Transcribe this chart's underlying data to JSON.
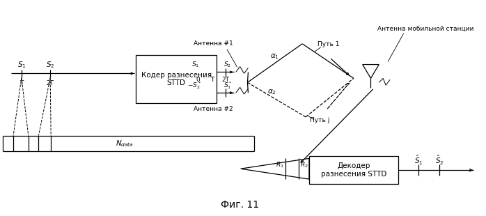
{
  "bg_color": "#ffffff",
  "fig_caption": "Фиг. 11",
  "encoder_label": "Кодер разнесения\nSTTD",
  "decoder_label": "Декодер\nразнесения STTD",
  "antenna_mobile_label": "Антенна мобильной станции",
  "antenna1_label": "Антенна #1",
  "antenna2_label": "Антенна #2",
  "path1_label": "Путь 1",
  "pathj_label": "Путь j",
  "ndata_label": "N_{data}"
}
